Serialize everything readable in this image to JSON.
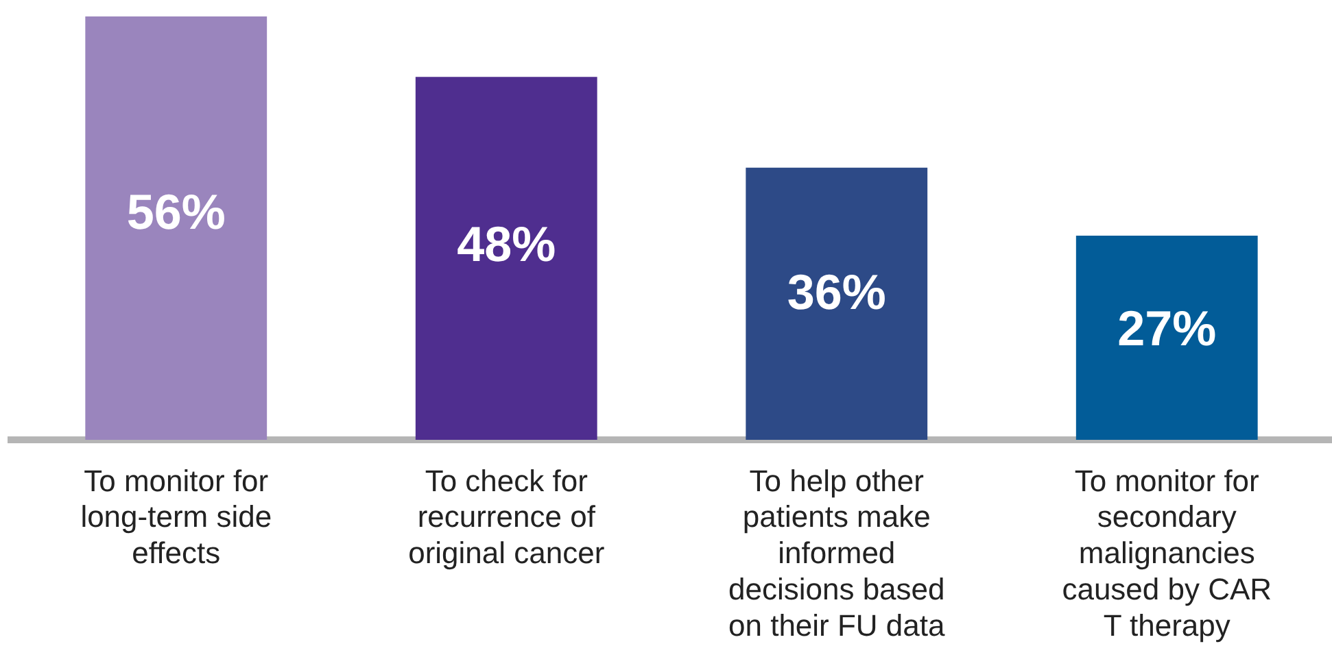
{
  "chart_data": {
    "type": "bar",
    "relative": false,
    "categories": [
      "To monitor for long-term side effects",
      "To check for recurrence of original cancer",
      "To help other patients make informed decisions based on their FU data",
      "To monitor for secondary malignancies caused by CAR T therapy"
    ],
    "values": [
      56,
      48,
      36,
      27
    ],
    "colors": [
      "#9a85bd",
      "#4f2e8f",
      "#2d4a87",
      "#025c98"
    ],
    "value_labels": [
      "56%",
      "48%",
      "36%",
      "27%"
    ]
  }
}
